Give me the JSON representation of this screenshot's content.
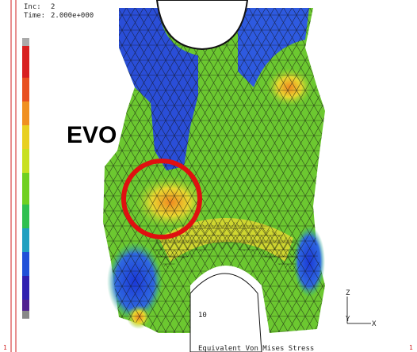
{
  "header": {
    "inc_label": "Inc:",
    "inc_value": "2",
    "time_label": "Time:",
    "time_value": "2.000e+000"
  },
  "annotation": "EVO",
  "footer": {
    "partial": "10",
    "caption": "Equivalent Von Mises Stress"
  },
  "axes": {
    "z": "Z",
    "y": "Y",
    "x": "X"
  },
  "corner_marks": [
    "1",
    "1"
  ]
}
